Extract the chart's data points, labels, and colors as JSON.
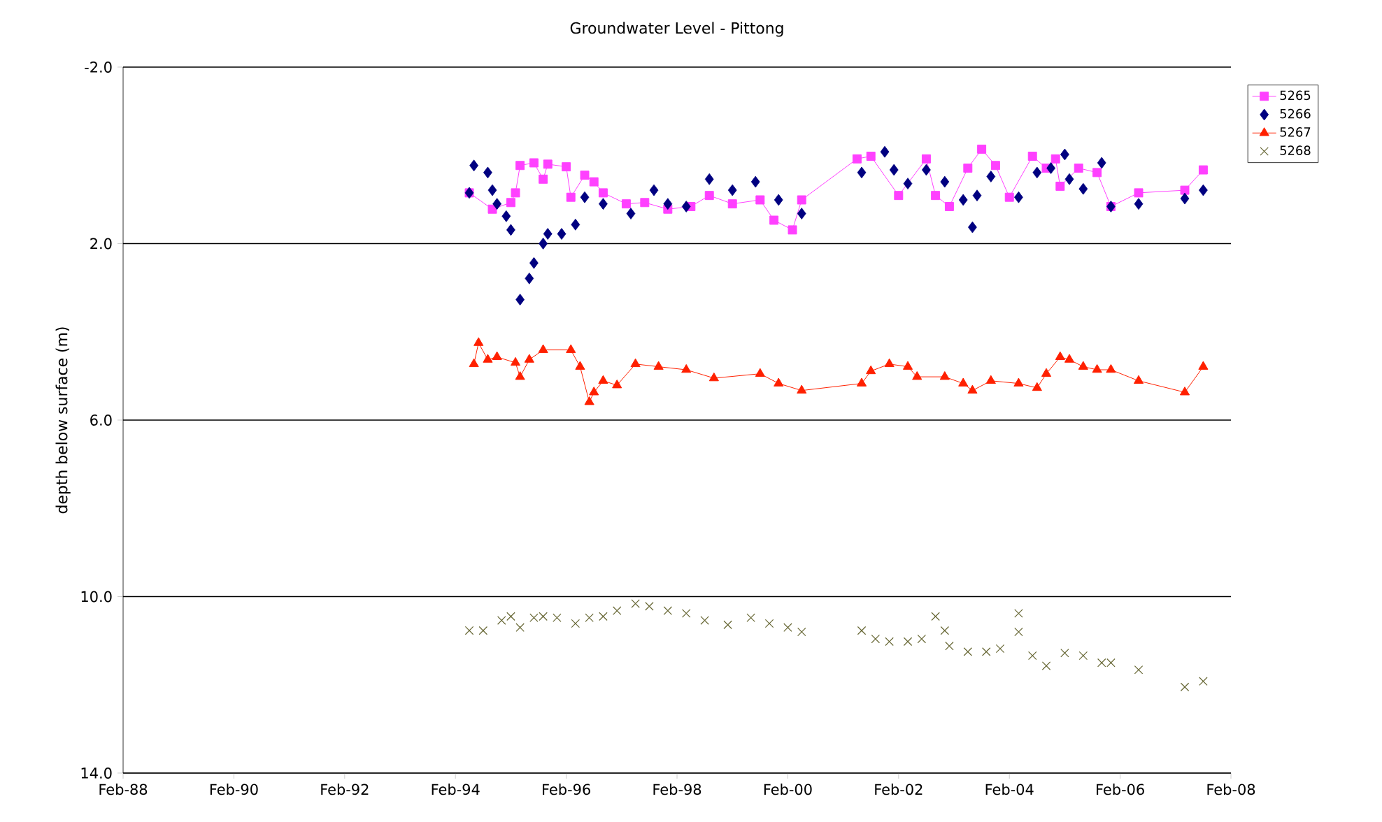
{
  "chart_data": {
    "type": "scatter",
    "title": "Groundwater Level - Pittong",
    "ylabel": "depth below surface (m)",
    "xlim": [
      "1988-02",
      "2008-02"
    ],
    "xticks": [
      {
        "value": "1988-02",
        "label": "Feb-88"
      },
      {
        "value": "1990-02",
        "label": "Feb-90"
      },
      {
        "value": "1992-02",
        "label": "Feb-92"
      },
      {
        "value": "1994-02",
        "label": "Feb-94"
      },
      {
        "value": "1996-02",
        "label": "Feb-96"
      },
      {
        "value": "1998-02",
        "label": "Feb-98"
      },
      {
        "value": "2000-02",
        "label": "Feb-00"
      },
      {
        "value": "2002-02",
        "label": "Feb-02"
      },
      {
        "value": "2004-02",
        "label": "Feb-04"
      },
      {
        "value": "2006-02",
        "label": "Feb-06"
      },
      {
        "value": "2008-02",
        "label": "Feb-08"
      }
    ],
    "ylim": [
      14,
      -2
    ],
    "yticks": [
      {
        "value": -2,
        "label": "-2.0"
      },
      {
        "value": 2,
        "label": "2.0"
      },
      {
        "value": 6,
        "label": "6.0"
      },
      {
        "value": 10,
        "label": "10.0"
      },
      {
        "value": 14,
        "label": "14.0"
      }
    ],
    "grid": "y",
    "legend": "top right",
    "series": [
      {
        "name": "5265",
        "type": "line",
        "marker": "square",
        "color": "#ff40ff",
        "x": [
          "1994-05",
          "1994-10",
          "1995-02",
          "1995-03",
          "1995-04",
          "1995-07",
          "1995-09",
          "1995-10",
          "1996-02",
          "1996-03",
          "1996-06",
          "1996-08",
          "1996-10",
          "1997-03",
          "1997-07",
          "1997-12",
          "1998-05",
          "1998-09",
          "1999-02",
          "1999-08",
          "1999-11",
          "2000-03",
          "2000-05",
          "2001-05",
          "2001-08",
          "2002-02",
          "2002-08",
          "2002-10",
          "2003-01",
          "2003-05",
          "2003-08",
          "2003-11",
          "2004-02",
          "2004-07",
          "2004-10",
          "2004-12",
          "2005-01",
          "2005-05",
          "2005-09",
          "2005-12",
          "2006-06",
          "2007-04",
          "2007-08"
        ],
        "values": [
          0.85,
          1.22,
          1.07,
          0.85,
          0.23,
          0.17,
          0.54,
          0.2,
          0.26,
          0.95,
          0.45,
          0.6,
          0.85,
          1.1,
          1.07,
          1.22,
          1.16,
          0.91,
          1.1,
          1.01,
          1.47,
          1.69,
          1.01,
          0.08,
          0.02,
          0.91,
          0.08,
          0.91,
          1.16,
          0.29,
          -0.14,
          0.23,
          0.95,
          0.02,
          0.29,
          0.08,
          0.7,
          0.29,
          0.39,
          1.16,
          0.85,
          0.79,
          0.33
        ]
      },
      {
        "name": "5266",
        "marker": "diamond",
        "color": "#000080",
        "x": [
          "1994-05",
          "1994-06",
          "1994-09",
          "1994-10",
          "1994-11",
          "1995-01",
          "1995-02",
          "1995-04",
          "1995-06",
          "1995-07",
          "1995-09",
          "1995-10",
          "1996-01",
          "1996-04",
          "1996-06",
          "1996-10",
          "1997-04",
          "1997-09",
          "1997-12",
          "1998-04",
          "1998-09",
          "1999-02",
          "1999-07",
          "1999-12",
          "2000-05",
          "2001-06",
          "2001-11",
          "2002-01",
          "2002-04",
          "2002-08",
          "2002-12",
          "2003-04",
          "2003-06",
          "2003-07",
          "2003-10",
          "2004-04",
          "2004-08",
          "2004-11",
          "2005-02",
          "2005-03",
          "2005-06",
          "2005-10",
          "2005-12",
          "2006-06",
          "2007-04",
          "2007-08"
        ],
        "values": [
          0.85,
          0.23,
          0.39,
          0.79,
          1.1,
          1.38,
          1.69,
          3.27,
          2.79,
          2.44,
          2.0,
          1.78,
          1.78,
          1.57,
          0.95,
          1.1,
          1.32,
          0.79,
          1.1,
          1.16,
          0.54,
          0.79,
          0.6,
          1.01,
          1.32,
          0.39,
          -0.08,
          0.33,
          0.64,
          0.33,
          0.6,
          1.01,
          1.63,
          0.91,
          0.48,
          0.95,
          0.39,
          0.29,
          -0.02,
          0.54,
          0.76,
          0.17,
          1.16,
          1.1,
          0.98,
          0.79
        ]
      },
      {
        "name": "5267",
        "type": "line",
        "marker": "triangle",
        "color": "#ff2000",
        "x": [
          "1994-06",
          "1994-07",
          "1994-09",
          "1994-11",
          "1995-03",
          "1995-04",
          "1995-06",
          "1995-09",
          "1996-03",
          "1996-05",
          "1996-07",
          "1996-08",
          "1996-10",
          "1997-01",
          "1997-05",
          "1997-10",
          "1998-04",
          "1998-10",
          "1999-08",
          "1999-12",
          "2000-05",
          "2001-06",
          "2001-08",
          "2001-12",
          "2002-04",
          "2002-06",
          "2002-12",
          "2003-04",
          "2003-06",
          "2003-10",
          "2004-04",
          "2004-08",
          "2004-10",
          "2005-01",
          "2005-03",
          "2005-06",
          "2005-09",
          "2005-12",
          "2006-06",
          "2007-04",
          "2007-08"
        ],
        "values": [
          4.73,
          4.25,
          4.63,
          4.57,
          4.7,
          5.02,
          4.63,
          4.41,
          4.41,
          4.79,
          5.59,
          5.37,
          5.11,
          5.21,
          4.73,
          4.79,
          4.86,
          5.05,
          4.95,
          5.17,
          5.33,
          5.17,
          4.89,
          4.73,
          4.79,
          5.02,
          5.02,
          5.17,
          5.33,
          5.11,
          5.17,
          5.27,
          4.95,
          4.57,
          4.63,
          4.79,
          4.86,
          4.86,
          5.11,
          5.37,
          4.79
        ]
      },
      {
        "name": "5268",
        "marker": "cross",
        "color": "#666633",
        "x": [
          "1994-05",
          "1994-08",
          "1994-12",
          "1995-02",
          "1995-04",
          "1995-07",
          "1995-09",
          "1995-12",
          "1996-04",
          "1996-07",
          "1996-10",
          "1997-01",
          "1997-05",
          "1997-08",
          "1997-12",
          "1998-04",
          "1998-08",
          "1999-01",
          "1999-06",
          "1999-10",
          "2000-02",
          "2000-05",
          "2001-06",
          "2001-09",
          "2001-12",
          "2002-04",
          "2002-07",
          "2002-10",
          "2002-12",
          "2003-01",
          "2003-05",
          "2003-09",
          "2003-12",
          "2004-04",
          "2004-04",
          "2004-07",
          "2004-10",
          "2005-02",
          "2005-06",
          "2005-10",
          "2005-12",
          "2006-06",
          "2007-04",
          "2007-08"
        ],
        "values": [
          10.77,
          10.77,
          10.54,
          10.45,
          10.7,
          10.48,
          10.45,
          10.48,
          10.61,
          10.48,
          10.45,
          10.32,
          10.16,
          10.22,
          10.32,
          10.38,
          10.54,
          10.64,
          10.48,
          10.61,
          10.7,
          10.8,
          10.77,
          10.96,
          11.02,
          11.02,
          10.96,
          10.45,
          10.77,
          11.12,
          11.25,
          11.25,
          11.18,
          10.38,
          10.8,
          11.34,
          11.57,
          11.28,
          11.34,
          11.5,
          11.5,
          11.66,
          12.05,
          11.92
        ]
      }
    ]
  }
}
